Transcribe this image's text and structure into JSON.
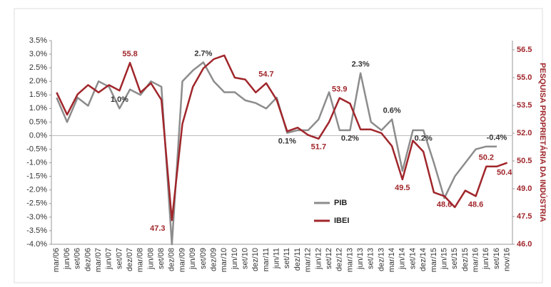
{
  "chart_data": {
    "type": "line",
    "categories": [
      "mar/06",
      "jun/06",
      "set/06",
      "dez/06",
      "mar/07",
      "jun/07",
      "set/07",
      "dez/07",
      "mar/08",
      "jun/08",
      "set/08",
      "dez/08",
      "mar/09",
      "jun/09",
      "set/09",
      "dez/09",
      "mar/10",
      "jun/10",
      "set/10",
      "dez/10",
      "mar/11",
      "jun/11",
      "set/11",
      "dez/11",
      "mar/12",
      "jun/12",
      "set/12",
      "dez/12",
      "mar/13",
      "jun/13",
      "set/13",
      "dez/13",
      "mar/14",
      "jun/14",
      "set/14",
      "dez/14",
      "mar/15",
      "jun/15",
      "set/15",
      "dez/15",
      "mar/16",
      "jun/16",
      "set/16",
      "nov/16"
    ],
    "series": [
      {
        "name": "PIB",
        "color": "#8c8c8c",
        "values": [
          1.4,
          0.5,
          1.4,
          1.1,
          2.0,
          1.8,
          1.0,
          1.7,
          1.5,
          2.0,
          1.8,
          -4.0,
          2.0,
          2.4,
          2.7,
          2.0,
          1.6,
          1.6,
          1.3,
          1.2,
          1.0,
          1.4,
          0.1,
          0.2,
          0.2,
          0.6,
          1.6,
          0.2,
          0.2,
          2.3,
          0.5,
          0.2,
          0.6,
          -1.3,
          0.2,
          0.2,
          -1.0,
          -2.3,
          -1.5,
          -1.0,
          -0.5,
          -0.4,
          -0.4,
          null
        ],
        "value_labels": [
          null,
          null,
          null,
          null,
          null,
          null,
          "1.0%",
          null,
          null,
          null,
          null,
          null,
          null,
          null,
          "2.7%",
          null,
          null,
          null,
          null,
          null,
          null,
          null,
          "0.1%",
          null,
          null,
          null,
          null,
          null,
          "0.2%",
          "2.3%",
          null,
          null,
          "0.6%",
          null,
          null,
          "0.2%",
          null,
          null,
          null,
          null,
          null,
          null,
          "-0.4%",
          null
        ]
      },
      {
        "name": "IBEI",
        "color": "#a0262b",
        "axis": "y2",
        "values": [
          54.2,
          53.0,
          54.1,
          54.6,
          54.2,
          54.6,
          54.3,
          55.8,
          54.2,
          54.7,
          53.8,
          47.3,
          52.5,
          54.5,
          55.5,
          56.0,
          56.2,
          55.0,
          54.9,
          54.2,
          54.7,
          53.8,
          52.1,
          52.3,
          51.9,
          51.7,
          52.6,
          53.9,
          53.6,
          52.2,
          52.2,
          52.0,
          51.3,
          49.5,
          51.6,
          51.0,
          48.8,
          48.6,
          48.0,
          48.9,
          48.6,
          50.2,
          50.2,
          50.4
        ],
        "value_labels": [
          null,
          null,
          null,
          null,
          null,
          null,
          null,
          "55.8",
          null,
          null,
          null,
          "47.3",
          null,
          null,
          null,
          null,
          null,
          null,
          null,
          null,
          "54.7",
          null,
          null,
          null,
          null,
          "51.7",
          null,
          "53.9",
          null,
          null,
          null,
          null,
          null,
          "49.5",
          null,
          null,
          null,
          "48.6",
          null,
          null,
          "48.6",
          "50.2",
          null,
          "50.4"
        ]
      }
    ],
    "ylim": [
      -4.0,
      3.5
    ],
    "yticks": [
      {
        "value": 3.5,
        "label": "3.5%"
      },
      {
        "value": 3.0,
        "label": "3.0%"
      },
      {
        "value": 2.5,
        "label": "2.5%"
      },
      {
        "value": 2.0,
        "label": "2.0%"
      },
      {
        "value": 1.5,
        "label": "1.5%"
      },
      {
        "value": 1.0,
        "label": "1.0%"
      },
      {
        "value": 0.5,
        "label": "0.5%"
      },
      {
        "value": 0.0,
        "label": "0.0%"
      },
      {
        "value": -0.5,
        "label": "-0.5%"
      },
      {
        "value": -1.0,
        "label": "-1.0%"
      },
      {
        "value": -1.5,
        "label": "-1.5%"
      },
      {
        "value": -2.0,
        "label": "-2.0%"
      },
      {
        "value": -2.5,
        "label": "-2.5%"
      },
      {
        "value": -3.0,
        "label": "-3.0%"
      },
      {
        "value": -3.5,
        "label": "-3.5%"
      },
      {
        "value": -4.0,
        "label": "-4.0%"
      }
    ],
    "y2lim": [
      46.0,
      57.0
    ],
    "y2ticks": [
      {
        "value": 46,
        "label": "46.0"
      },
      {
        "value": 47.5,
        "label": "47.5"
      },
      {
        "value": 49,
        "label": "49.0"
      },
      {
        "value": 50.5,
        "label": "50.5"
      },
      {
        "value": 52,
        "label": "52.0"
      },
      {
        "value": 53.5,
        "label": "53.5"
      },
      {
        "value": 55,
        "label": "55.0"
      },
      {
        "value": 56.5,
        "label": "56.5"
      }
    ],
    "y2label": "PESQUISA PROPRIETÁRIA DA INDÚSTRIA",
    "legend": "center"
  }
}
